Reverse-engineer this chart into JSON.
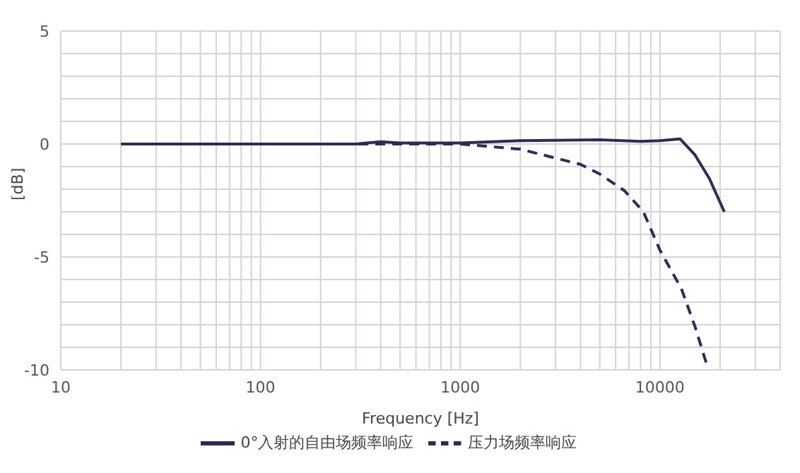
{
  "chart_data": {
    "type": "line",
    "xlabel": "Frequency [Hz]",
    "ylabel": "[dB]",
    "log": "x",
    "xlim": [
      10,
      40000
    ],
    "xticks": [
      10,
      {
        "value": 20,
        "label": null
      },
      {
        "value": 30,
        "label": null
      },
      {
        "value": 40,
        "label": null
      },
      {
        "value": 50,
        "label": null
      },
      {
        "value": 60,
        "label": null
      },
      {
        "value": 70,
        "label": null
      },
      {
        "value": 80,
        "label": null
      },
      {
        "value": 90,
        "label": null
      },
      100,
      {
        "value": 200,
        "label": null
      },
      {
        "value": 300,
        "label": null
      },
      {
        "value": 400,
        "label": null
      },
      {
        "value": 500,
        "label": null
      },
      {
        "value": 600,
        "label": null
      },
      {
        "value": 700,
        "label": null
      },
      {
        "value": 800,
        "label": null
      },
      {
        "value": 900,
        "label": null
      },
      1000,
      {
        "value": 2000,
        "label": null
      },
      {
        "value": 3000,
        "label": null
      },
      {
        "value": 4000,
        "label": null
      },
      {
        "value": 5000,
        "label": null
      },
      {
        "value": 6000,
        "label": null
      },
      {
        "value": 7000,
        "label": null
      },
      {
        "value": 8000,
        "label": null
      },
      {
        "value": 9000,
        "label": null
      },
      10000,
      {
        "value": 20000,
        "label": null
      },
      {
        "value": 30000,
        "label": null
      },
      {
        "value": 40000,
        "label": null
      }
    ],
    "ylim": [
      -10,
      5
    ],
    "yticks": [
      -10,
      {
        "value": -9,
        "label": null
      },
      {
        "value": -8,
        "label": null
      },
      {
        "value": -7,
        "label": null
      },
      {
        "value": -6,
        "label": null
      },
      -5,
      {
        "value": -4,
        "label": null
      },
      {
        "value": -3,
        "label": null
      },
      {
        "value": -2,
        "label": null
      },
      {
        "value": -1,
        "label": null
      },
      0,
      {
        "value": 1,
        "label": null
      },
      {
        "value": 2,
        "label": null
      },
      {
        "value": 3,
        "label": null
      },
      {
        "value": 4,
        "label": null
      },
      5
    ],
    "grid": true,
    "legend": "bottom",
    "marker": "none",
    "series": [
      {
        "name": "0°入射的自由场频率响应",
        "color": "#2b2d52",
        "line_style": "solid",
        "x": [
          20,
          100,
          300,
          400,
          500,
          1000,
          2000,
          5000,
          8000,
          10000,
          12600,
          15000,
          17700,
          21000
        ],
        "values": [
          0,
          0,
          0,
          0.1,
          0.05,
          0.05,
          0.15,
          0.19,
          0.12,
          0.15,
          0.23,
          -0.49,
          -1.54,
          -3.0
        ]
      },
      {
        "name": "压力场频率响应",
        "color": "#2b2d52",
        "line_style": "dashed",
        "x": [
          20,
          100,
          500,
          1000,
          2000,
          4000,
          5000,
          6650,
          8260,
          10000,
          12800,
          15000,
          17200
        ],
        "values": [
          0,
          0,
          0,
          0,
          -0.23,
          -0.9,
          -1.33,
          -2.07,
          -3.0,
          -4.7,
          -6.4,
          -8.1,
          -9.8
        ]
      }
    ]
  }
}
